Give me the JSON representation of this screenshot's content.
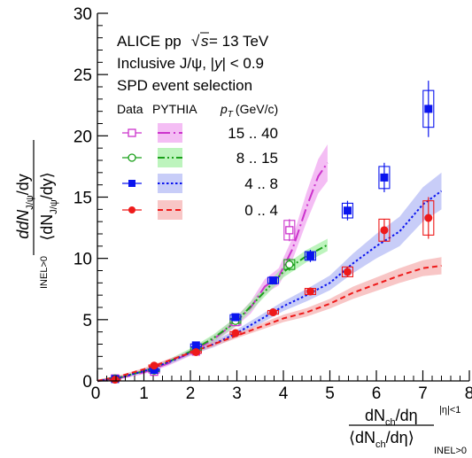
{
  "chart_data": {
    "type": "scatter",
    "title_lines": [
      "ALICE pp",
      "= 13 TeV",
      "Inclusive J/ψ, |",
      "| < 0.9",
      "SPD event selection"
    ],
    "text": {
      "alice": "ALICE pp",
      "sqrt_s_pre": "√",
      "sqrt_s_sym": "s",
      "sqrt_s_post": " = 13 TeV",
      "inclusive_pre": "Inclusive J/ψ, |",
      "inclusive_y": "y",
      "inclusive_post": "| < 0.9",
      "selection": "SPD event selection",
      "legend_data": "Data",
      "legend_pythia": "PYTHIA",
      "legend_pt": "p",
      "legend_pt_sub": "T",
      "legend_pt_unit": "(GeV/c)",
      "ylabel_num": "dN",
      "ylabel_num_sub": "J/ψ",
      "ylabel_num_tail": "/dy",
      "ylabel_den": "⟨dN",
      "ylabel_den_sub": "J/ψ",
      "ylabel_den_tail": "/dy⟩",
      "ylabel_den_suffix": "INEL>0",
      "xlabel_num": "dN",
      "xlabel_num_sub": "ch",
      "xlabel_num_tail": "/dη",
      "xlabel_num_suffix": "|η|<1",
      "xlabel_den": "⟨dN",
      "xlabel_den_sub": "ch",
      "xlabel_den_tail": "/dη⟩",
      "xlabel_den_suffix": "INEL>0"
    },
    "xlim": [
      0,
      8
    ],
    "ylim": [
      0,
      30
    ],
    "xticks": [
      0,
      1,
      2,
      3,
      4,
      5,
      6,
      7,
      8
    ],
    "yticks": [
      0,
      5,
      10,
      15,
      20,
      25,
      30
    ],
    "legend_placement": "upper-left",
    "series": [
      {
        "label": "15 .. 40",
        "color": "#cc33cc",
        "band_color": "#ee99ee",
        "marker": "open-square",
        "line_style": "dash-dot",
        "data": [
          {
            "x": 0.38,
            "y": 0.2
          },
          {
            "x": 1.22,
            "y": 0.75
          },
          {
            "x": 2.12,
            "y": 2.4
          },
          {
            "x": 2.97,
            "y": 4.8
          },
          {
            "x": 4.13,
            "y": 12.3
          }
        ],
        "pythia": {
          "x": [
            0.0,
            0.5,
            1.0,
            1.5,
            2.0,
            2.5,
            3.0,
            3.3,
            3.6,
            3.9,
            4.2,
            4.5,
            4.75,
            4.95
          ],
          "y": [
            0.0,
            0.25,
            0.7,
            1.4,
            2.3,
            3.4,
            4.9,
            6.0,
            7.7,
            8.5,
            10.8,
            14.2,
            16.7,
            17.8
          ],
          "band": [
            0.1,
            0.1,
            0.15,
            0.2,
            0.25,
            0.3,
            0.4,
            0.5,
            0.6,
            0.7,
            0.9,
            1.2,
            1.4,
            1.5
          ]
        }
      },
      {
        "label": "8 .. 15",
        "color": "#1aa01a",
        "band_color": "#99ee99",
        "marker": "open-circle",
        "line_style": "dash-dot-dot",
        "data": [
          {
            "x": 0.38,
            "y": 0.2
          },
          {
            "x": 1.22,
            "y": 0.85
          },
          {
            "x": 2.12,
            "y": 2.6
          },
          {
            "x": 2.97,
            "y": 4.9
          },
          {
            "x": 4.13,
            "y": 9.5
          }
        ],
        "pythia": {
          "x": [
            0.0,
            0.5,
            1.0,
            1.5,
            2.0,
            2.5,
            3.0,
            3.5,
            4.0,
            4.5,
            4.95
          ],
          "y": [
            0.0,
            0.3,
            0.8,
            1.5,
            2.4,
            3.5,
            4.9,
            6.9,
            8.9,
            10.2,
            11.1
          ],
          "band": [
            0.1,
            0.1,
            0.15,
            0.2,
            0.25,
            0.3,
            0.35,
            0.4,
            0.45,
            0.5,
            0.5
          ]
        }
      },
      {
        "label": "4 .. 8",
        "color": "#0a14ee",
        "band_color": "#aab2f4",
        "marker": "filled-square",
        "line_style": "dotted",
        "data": [
          {
            "x": 0.38,
            "y": 0.15
          },
          {
            "x": 1.22,
            "y": 0.9
          },
          {
            "x": 2.12,
            "y": 2.9
          },
          {
            "x": 2.97,
            "y": 5.2
          },
          {
            "x": 3.78,
            "y": 8.2
          },
          {
            "x": 4.58,
            "y": 10.2
          },
          {
            "x": 5.38,
            "y": 13.9
          },
          {
            "x": 6.17,
            "y": 16.6
          },
          {
            "x": 7.12,
            "y": 22.2
          }
        ],
        "pythia": {
          "x": [
            0.0,
            0.5,
            1.0,
            1.5,
            2.0,
            2.5,
            3.0,
            3.5,
            4.0,
            4.5,
            5.0,
            5.5,
            6.0,
            6.5,
            7.0,
            7.4
          ],
          "y": [
            0.0,
            0.3,
            0.8,
            1.5,
            2.3,
            3.0,
            3.9,
            5.0,
            6.1,
            7.0,
            8.0,
            9.6,
            11.0,
            12.2,
            14.4,
            15.5
          ],
          "band": [
            0.1,
            0.1,
            0.15,
            0.2,
            0.2,
            0.25,
            0.3,
            0.35,
            0.4,
            0.5,
            0.6,
            0.8,
            1.0,
            1.2,
            1.4,
            1.5
          ]
        }
      },
      {
        "label": "0 .. 4",
        "color": "#ee1a1a",
        "band_color": "#f4a8a8",
        "marker": "filled-circle",
        "line_style": "dashed",
        "data": [
          {
            "x": 0.38,
            "y": 0.1
          },
          {
            "x": 1.22,
            "y": 1.25
          },
          {
            "x": 2.12,
            "y": 2.35
          },
          {
            "x": 2.97,
            "y": 3.9
          },
          {
            "x": 3.78,
            "y": 5.6
          },
          {
            "x": 4.58,
            "y": 7.3
          },
          {
            "x": 5.38,
            "y": 8.9
          },
          {
            "x": 6.17,
            "y": 12.3
          },
          {
            "x": 7.12,
            "y": 13.3
          }
        ],
        "pythia": {
          "x": [
            0.0,
            0.5,
            1.0,
            1.5,
            2.0,
            2.5,
            3.0,
            3.5,
            4.0,
            4.5,
            5.0,
            5.5,
            6.0,
            6.5,
            7.0,
            7.4
          ],
          "y": [
            0.0,
            0.4,
            0.95,
            1.6,
            2.3,
            3.0,
            3.7,
            4.4,
            5.1,
            5.6,
            6.3,
            7.2,
            7.9,
            8.6,
            9.2,
            9.4
          ],
          "band": [
            0.1,
            0.1,
            0.1,
            0.15,
            0.15,
            0.2,
            0.2,
            0.25,
            0.3,
            0.35,
            0.4,
            0.5,
            0.55,
            0.6,
            0.65,
            0.7
          ]
        }
      }
    ]
  },
  "stat_err": {
    "15 .. 40": [
      0.1,
      0.15,
      0.2,
      0.3,
      0.9
    ],
    "8 .. 15": [
      0.1,
      0.12,
      0.2,
      0.25,
      0.5
    ],
    "4 .. 8": [
      0.1,
      0.12,
      0.15,
      0.2,
      0.3,
      0.5,
      0.8,
      1.2,
      2.3
    ],
    "0 .. 4": [
      0.05,
      0.05,
      0.08,
      0.12,
      0.15,
      0.25,
      0.4,
      0.9,
      1.7
    ]
  },
  "sys_err": {
    "15 .. 40": [
      0.05,
      0.1,
      0.15,
      0.25,
      0.8
    ],
    "8 .. 15": [
      0.05,
      0.08,
      0.15,
      0.2,
      0.4
    ],
    "4 .. 8": [
      0.05,
      0.08,
      0.12,
      0.2,
      0.25,
      0.35,
      0.6,
      0.9,
      1.5
    ],
    "0 .. 4": [
      0.05,
      0.05,
      0.08,
      0.12,
      0.15,
      0.25,
      0.4,
      0.9,
      1.4
    ]
  }
}
